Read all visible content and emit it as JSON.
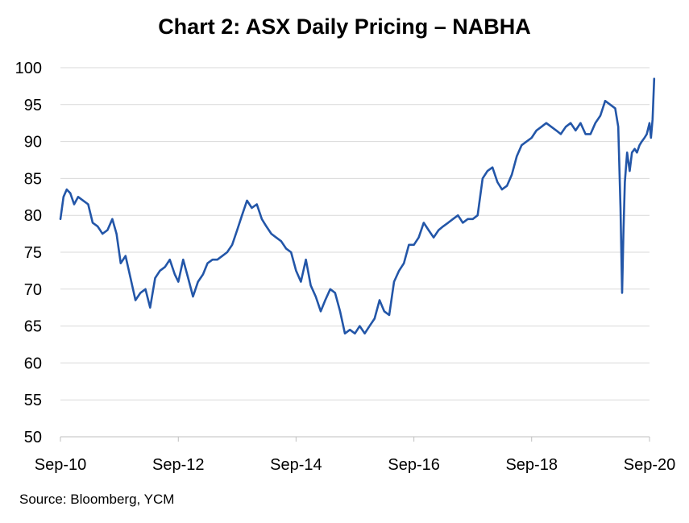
{
  "chart_data": {
    "type": "line",
    "title": "Chart 2: ASX Daily Pricing – NABHA",
    "source": "Source: Bloomberg, YCM",
    "xlabel": "",
    "ylabel": "",
    "ylim": [
      50,
      100
    ],
    "y_ticks": [
      "50",
      "55",
      "60",
      "65",
      "70",
      "75",
      "80",
      "85",
      "90",
      "95",
      "100"
    ],
    "x_ticks": [
      "Sep-10",
      "Sep-12",
      "Sep-14",
      "Sep-16",
      "Sep-18",
      "Sep-20"
    ],
    "grid": true,
    "line_color": "#2356a8",
    "series": [
      {
        "x": [
          "2010-09-01",
          "2010-09-20",
          "2010-10-10",
          "2010-11-01",
          "2010-11-25",
          "2010-12-20",
          "2011-01-20",
          "2011-02-20",
          "2011-03-20",
          "2011-04-20",
          "2011-05-20",
          "2011-06-20",
          "2011-07-20",
          "2011-08-15",
          "2011-09-10",
          "2011-10-10",
          "2011-11-10",
          "2011-12-10",
          "2012-01-10",
          "2012-02-10",
          "2012-03-10",
          "2012-04-10",
          "2012-05-10",
          "2012-06-10",
          "2012-07-10",
          "2012-08-10",
          "2012-09-01",
          "2012-10-01",
          "2012-11-01",
          "2012-12-01",
          "2013-01-01",
          "2013-02-01",
          "2013-03-01",
          "2013-04-01",
          "2013-05-01",
          "2013-06-01",
          "2013-07-01",
          "2013-08-01",
          "2013-09-01",
          "2013-10-01",
          "2013-11-01",
          "2013-12-01",
          "2014-01-01",
          "2014-02-01",
          "2014-03-01",
          "2014-04-01",
          "2014-05-01",
          "2014-06-01",
          "2014-07-01",
          "2014-08-01",
          "2014-09-01",
          "2014-10-01",
          "2014-11-01",
          "2014-12-01",
          "2015-01-01",
          "2015-02-01",
          "2015-03-01",
          "2015-04-01",
          "2015-05-01",
          "2015-06-01",
          "2015-07-01",
          "2015-08-01",
          "2015-09-01",
          "2015-10-01",
          "2015-11-01",
          "2015-12-01",
          "2016-01-01",
          "2016-02-01",
          "2016-03-01",
          "2016-04-01",
          "2016-05-01",
          "2016-06-01",
          "2016-07-01",
          "2016-08-01",
          "2016-09-01",
          "2016-10-01",
          "2016-11-01",
          "2016-12-01",
          "2017-01-01",
          "2017-02-01",
          "2017-03-01",
          "2017-04-01",
          "2017-05-01",
          "2017-06-01",
          "2017-07-01",
          "2017-08-01",
          "2017-09-01",
          "2017-10-01",
          "2017-11-01",
          "2017-12-01",
          "2018-01-01",
          "2018-02-01",
          "2018-03-01",
          "2018-04-01",
          "2018-05-01",
          "2018-06-01",
          "2018-07-01",
          "2018-08-01",
          "2018-09-01",
          "2018-10-01",
          "2018-11-01",
          "2018-12-01",
          "2019-01-01",
          "2019-02-01",
          "2019-03-01",
          "2019-04-01",
          "2019-05-01",
          "2019-06-01",
          "2019-07-01",
          "2019-08-01",
          "2019-09-01",
          "2019-10-01",
          "2019-11-01",
          "2019-12-01",
          "2020-01-01",
          "2020-02-01",
          "2020-02-20",
          "2020-03-05",
          "2020-03-15",
          "2020-03-23",
          "2020-04-01",
          "2020-04-15",
          "2020-05-01",
          "2020-05-15",
          "2020-06-01",
          "2020-06-15",
          "2020-07-01",
          "2020-07-15",
          "2020-08-01",
          "2020-08-15",
          "2020-09-01",
          "2020-09-10",
          "2020-09-20",
          "2020-09-30"
        ],
        "values": [
          79.5,
          82.5,
          83.5,
          83.0,
          81.5,
          82.5,
          82.0,
          81.5,
          79.0,
          78.5,
          77.5,
          78.0,
          79.5,
          77.5,
          73.5,
          74.5,
          71.5,
          68.5,
          69.5,
          70.0,
          67.5,
          71.5,
          72.5,
          73.0,
          74.0,
          72.0,
          71.0,
          74.0,
          71.5,
          69.0,
          71.0,
          72.0,
          73.5,
          74.0,
          74.0,
          74.5,
          75.0,
          76.0,
          78.0,
          80.0,
          82.0,
          81.0,
          81.5,
          79.5,
          78.5,
          77.5,
          77.0,
          76.5,
          75.5,
          75.0,
          72.5,
          71.0,
          74.0,
          70.5,
          69.0,
          67.0,
          68.5,
          70.0,
          69.5,
          67.0,
          64.0,
          64.5,
          64.0,
          65.0,
          64.0,
          65.0,
          66.0,
          68.5,
          67.0,
          66.5,
          71.0,
          72.5,
          73.5,
          76.0,
          76.0,
          77.0,
          79.0,
          78.0,
          77.0,
          78.0,
          78.5,
          79.0,
          79.5,
          80.0,
          79.0,
          79.5,
          79.5,
          80.0,
          85.0,
          86.0,
          86.5,
          84.5,
          83.5,
          84.0,
          85.5,
          88.0,
          89.5,
          90.0,
          90.5,
          91.5,
          92.0,
          92.5,
          92.0,
          91.5,
          91.0,
          92.0,
          92.5,
          91.5,
          92.5,
          91.0,
          91.0,
          92.5,
          93.5,
          95.5,
          95.0,
          94.5,
          92.0,
          81.0,
          69.5,
          77.5,
          84.5,
          88.5,
          86.0,
          88.5,
          89.0,
          88.5,
          89.5,
          90.0,
          90.5,
          91.0,
          92.5,
          90.5,
          93.0,
          98.5
        ]
      }
    ]
  }
}
